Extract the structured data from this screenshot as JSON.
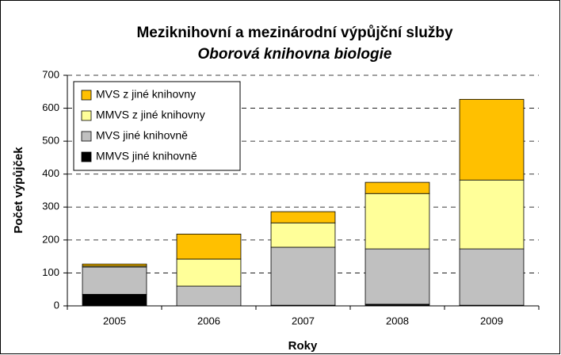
{
  "chart_data": {
    "type": "stacked_bar",
    "title": "Meziknihovní a mezinárodní výpůjční služby",
    "subtitle": "Oborová knihovna biologie",
    "x_label": "Roky",
    "y_label": "Počet výpůjček",
    "categories": [
      "2005",
      "2006",
      "2007",
      "2008",
      "2009"
    ],
    "series": [
      {
        "name": "MMVS jiné knihovně",
        "color": "#000000",
        "values": [
          35,
          0,
          2,
          5,
          2
        ]
      },
      {
        "name": "MVS jiné knihovně",
        "color": "#C0C0C0",
        "values": [
          83,
          60,
          176,
          168,
          171
        ]
      },
      {
        "name": "MMVS z jiné knihovny",
        "color": "#FFFF99",
        "values": [
          3,
          82,
          74,
          168,
          209
        ]
      },
      {
        "name": "MVS z jiné knihovny",
        "color": "#FFC000",
        "values": [
          6,
          76,
          34,
          34,
          245
        ]
      }
    ],
    "ylim": [
      0,
      700
    ],
    "yticks": [
      0,
      100,
      200,
      300,
      400,
      500,
      600,
      700
    ],
    "grid": true
  }
}
